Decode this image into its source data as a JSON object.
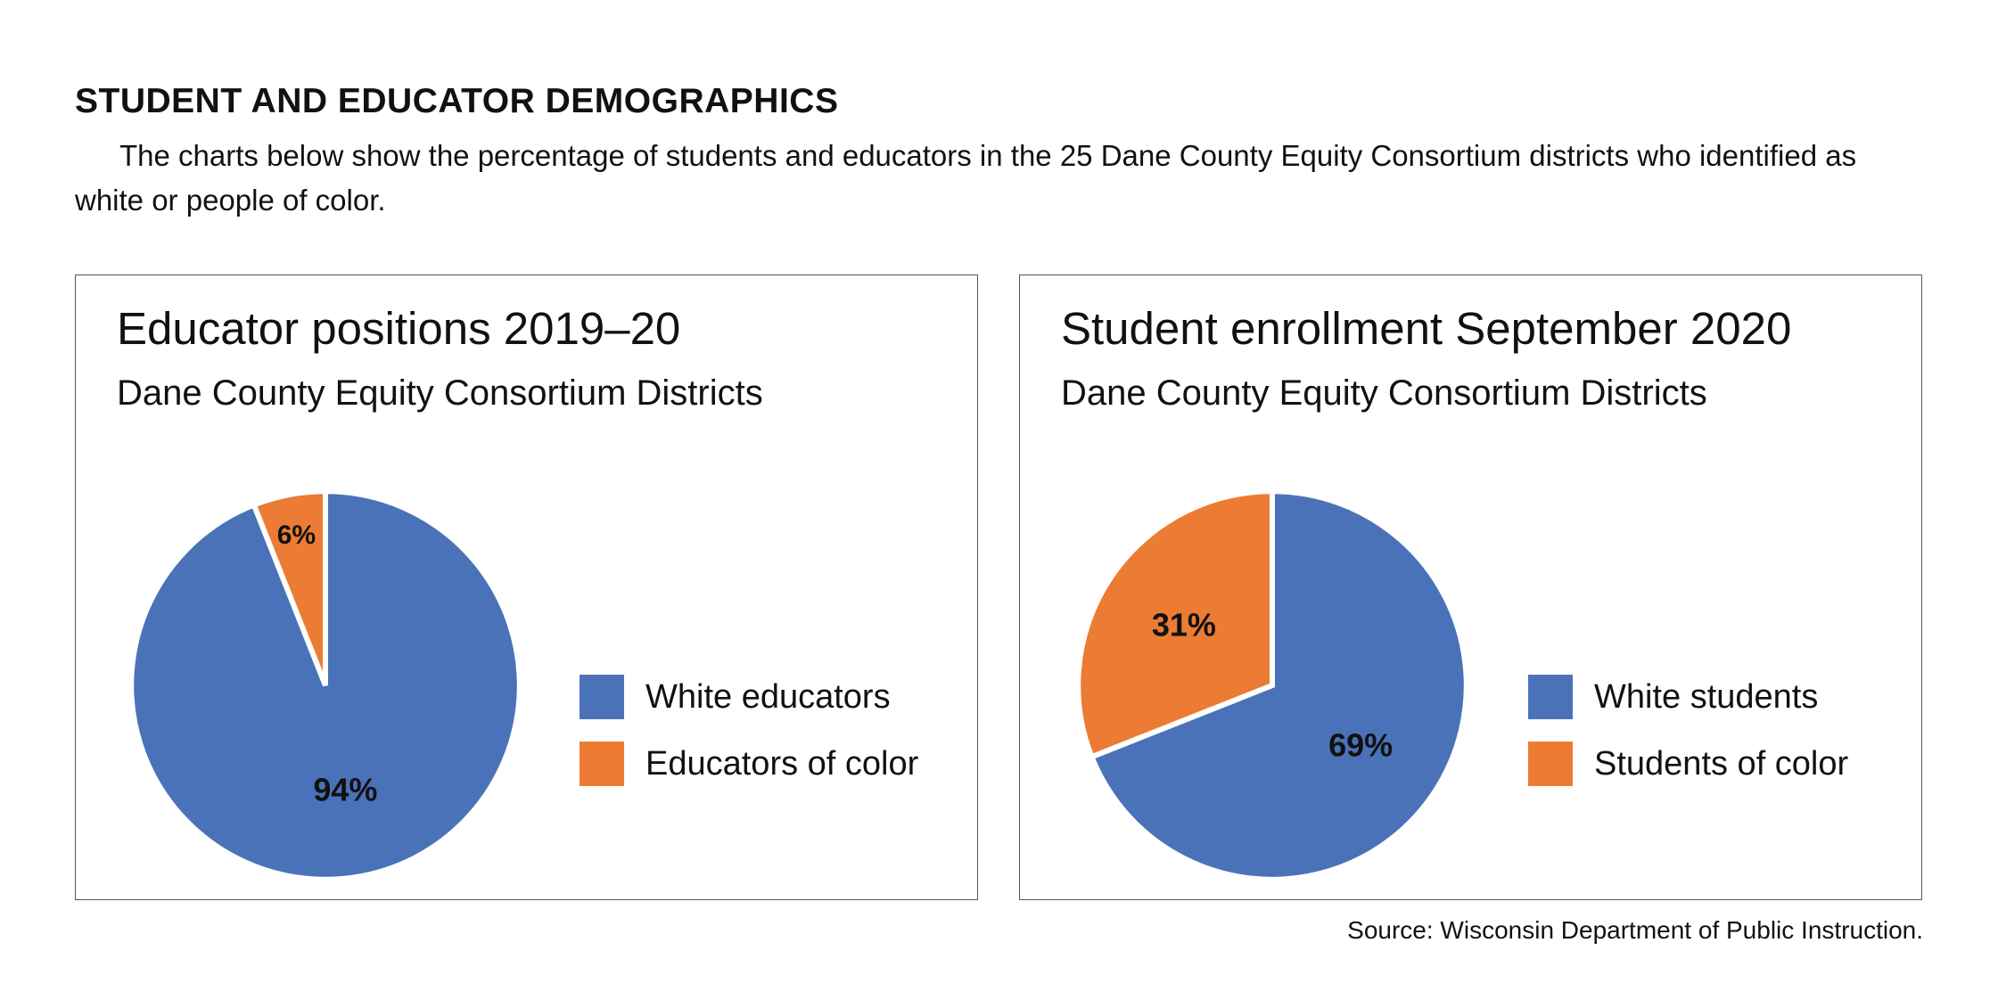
{
  "page": {
    "heading": "STUDENT AND EDUCATOR DEMOGRAPHICS",
    "intro": "The charts below show the percentage of students and educators in the 25 Dane County Equity Consortium districts who identified as white or people of color.",
    "source": "Source: Wisconsin Department of Public Instruction."
  },
  "colors": {
    "blue": "#4a72b9",
    "orange": "#ec7c33"
  },
  "chart_data": [
    {
      "type": "pie",
      "title": "Educator positions 2019–20",
      "subtitle": "Dane County Equity Consortium Districts",
      "categories": [
        "White educators",
        "Educators of color"
      ],
      "values": [
        94,
        6
      ],
      "value_labels": [
        "94%",
        "6%"
      ],
      "colors": [
        "#4a72b9",
        "#ec7c33"
      ],
      "legend": "right"
    },
    {
      "type": "pie",
      "title": "Student enrollment September 2020",
      "subtitle": "Dane County Equity Consortium Districts",
      "categories": [
        "White students",
        "Students of color"
      ],
      "values": [
        69,
        31
      ],
      "value_labels": [
        "69%",
        "31%"
      ],
      "colors": [
        "#4a72b9",
        "#ec7c33"
      ],
      "legend": "right"
    }
  ]
}
